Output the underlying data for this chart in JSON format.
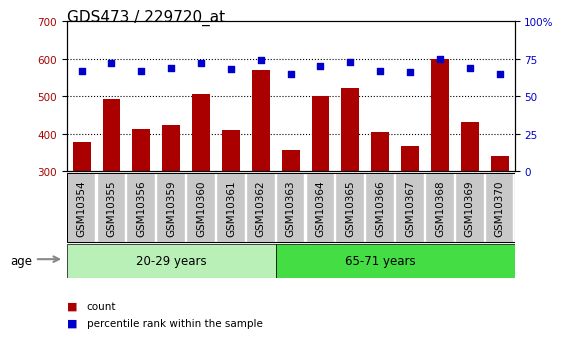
{
  "title": "GDS473 / 229720_at",
  "samples": [
    "GSM10354",
    "GSM10355",
    "GSM10356",
    "GSM10359",
    "GSM10360",
    "GSM10361",
    "GSM10362",
    "GSM10363",
    "GSM10364",
    "GSM10365",
    "GSM10366",
    "GSM10367",
    "GSM10368",
    "GSM10369",
    "GSM10370"
  ],
  "counts": [
    378,
    492,
    412,
    422,
    505,
    410,
    570,
    357,
    500,
    522,
    405,
    368,
    600,
    432,
    340
  ],
  "percentiles": [
    67,
    72,
    67,
    69,
    72,
    68,
    74,
    65,
    70,
    73,
    67,
    66,
    75,
    69,
    65
  ],
  "group1_label": "20-29 years",
  "group2_label": "65-71 years",
  "group1_count": 7,
  "group2_count": 8,
  "bar_color": "#AA0000",
  "dot_color": "#0000CC",
  "bar_bottom": 300,
  "ylim_left": [
    300,
    700
  ],
  "ylim_right": [
    0,
    100
  ],
  "left_yticks": [
    300,
    400,
    500,
    600,
    700
  ],
  "right_yticks": [
    0,
    25,
    50,
    75,
    100
  ],
  "grid_values": [
    400,
    500,
    600
  ],
  "legend_count_label": "count",
  "legend_pct_label": "percentile rank within the sample",
  "age_label": "age",
  "bg_plot": "#ffffff",
  "bg_xticklabel": "#c8c8c8",
  "bg_group1": "#b8f0b8",
  "bg_group2": "#44dd44",
  "title_fontsize": 11,
  "tick_fontsize": 7.5
}
